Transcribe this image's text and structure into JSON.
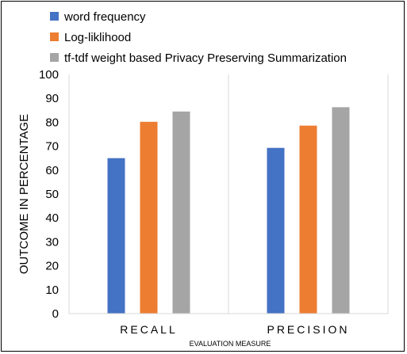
{
  "chart_data": {
    "type": "bar",
    "categories": [
      "RECALL",
      "PRECISION"
    ],
    "series": [
      {
        "name": "word frequency",
        "values": [
          65,
          69.3
        ],
        "color": "#4472C4"
      },
      {
        "name": "Log-liklihood",
        "values": [
          80.2,
          78.6
        ],
        "color": "#ED7D31"
      },
      {
        "name": "tf-tdf weight based Privacy Preserving Summarization",
        "values": [
          84.5,
          86.3
        ],
        "color": "#A5A5A5"
      }
    ],
    "title": "",
    "xlabel": "EVALUATION MEASURE",
    "ylabel": "OUTCOME IN PERCENTAGE",
    "ylim": [
      0,
      100
    ],
    "yticks": [
      0,
      10,
      20,
      30,
      40,
      50,
      60,
      70,
      80,
      90,
      100
    ],
    "grid": false,
    "legend_position": "top-left"
  }
}
